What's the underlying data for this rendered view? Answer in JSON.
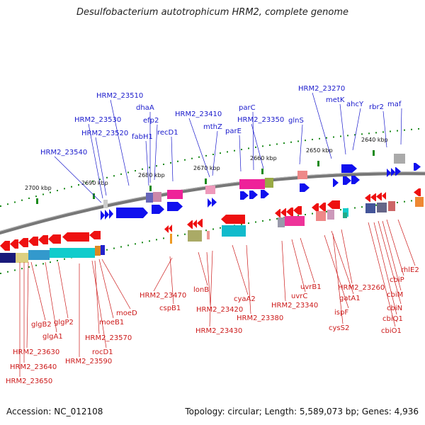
{
  "title": "Desulfobacterium autotrophicum HRM2, complete genome",
  "footer": {
    "accession": "Accession: NC_012108",
    "info": "Topology: circular; Length: 5,589,073 bp; Genes: 4,936"
  },
  "ticks": [
    {
      "label": "2700 kbp"
    },
    {
      "label": "2690 kbp"
    },
    {
      "label": "2680 kbp"
    },
    {
      "label": "2670 kbp"
    },
    {
      "label": "2660 kbp"
    },
    {
      "label": "2650 kbp"
    },
    {
      "label": "2640 kbp"
    }
  ],
  "upper_genes": [
    {
      "name": "HRM2_23540"
    },
    {
      "name": "HRM2_23530"
    },
    {
      "name": "HRM2_23520"
    },
    {
      "name": "HRM2_23510"
    },
    {
      "name": "fabH1"
    },
    {
      "name": "dhaA"
    },
    {
      "name": "efp2"
    },
    {
      "name": "recD1"
    },
    {
      "name": "HRM2_23410"
    },
    {
      "name": "mthZ"
    },
    {
      "name": "parE"
    },
    {
      "name": "parC"
    },
    {
      "name": "HRM2_23350"
    },
    {
      "name": "glnS"
    },
    {
      "name": "HRM2_23270"
    },
    {
      "name": "metK"
    },
    {
      "name": "ahcY"
    },
    {
      "name": "rbr2"
    },
    {
      "name": "maf"
    }
  ],
  "lower_genes": [
    {
      "name": "HRM2_23650"
    },
    {
      "name": "HRM2_23640"
    },
    {
      "name": "HRM2_23630"
    },
    {
      "name": "glgB2"
    },
    {
      "name": "glgA1"
    },
    {
      "name": "glgP2"
    },
    {
      "name": "HRM2_23590"
    },
    {
      "name": "rocD1"
    },
    {
      "name": "HRM2_23570"
    },
    {
      "name": "moeB1"
    },
    {
      "name": "moeD"
    },
    {
      "name": "HRM2_23470"
    },
    {
      "name": "cspB1"
    },
    {
      "name": "lonB"
    },
    {
      "name": "HRM2_23420"
    },
    {
      "name": "HRM2_23430"
    },
    {
      "name": "cyaA2"
    },
    {
      "name": "HRM2_23380"
    },
    {
      "name": "HRM2_23340"
    },
    {
      "name": "uvrC"
    },
    {
      "name": "uvrB1"
    },
    {
      "name": "ispF"
    },
    {
      "name": "cysS2"
    },
    {
      "name": "gatA1"
    },
    {
      "name": "HRM2_23260"
    },
    {
      "name": "cbiO1"
    },
    {
      "name": "cbiQ1"
    },
    {
      "name": "cbiN"
    },
    {
      "name": "cbiM"
    },
    {
      "name": "cbiP"
    },
    {
      "name": "rhlE2"
    }
  ],
  "colors": {
    "forward": "#1010ee",
    "reverse": "#ee1010",
    "backbone": "#888888",
    "tick": "#1a8a1a",
    "cog_magenta": "#ee2299",
    "cog_cyan": "#11cccc",
    "cog_olive": "#99aa44"
  }
}
